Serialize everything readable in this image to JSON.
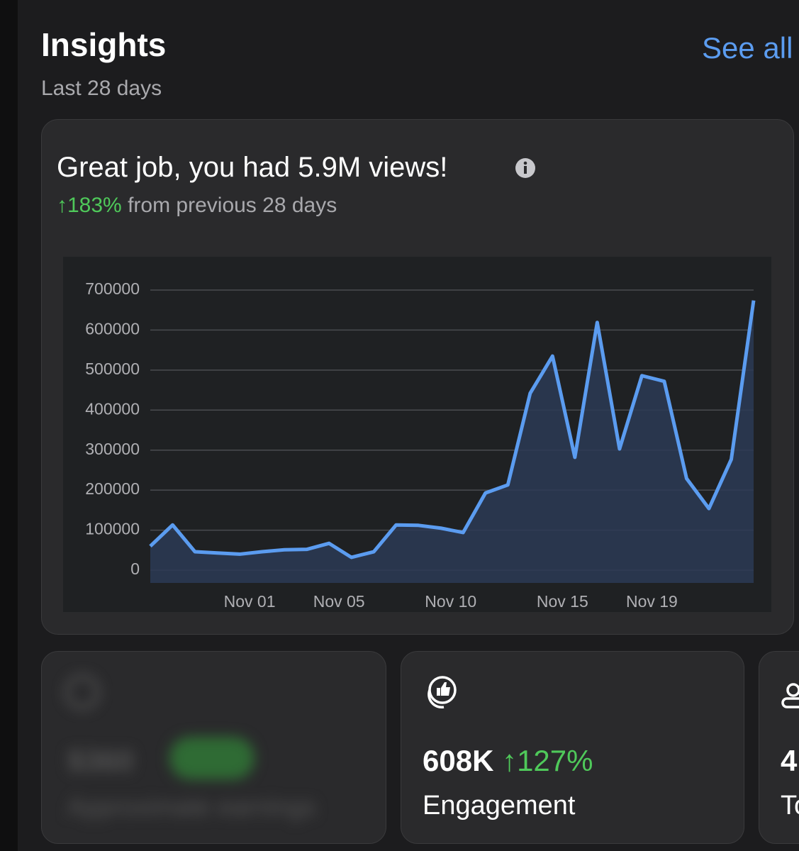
{
  "header": {
    "title": "Insights",
    "subtitle": "Last 28 days",
    "link": "See all"
  },
  "views_card": {
    "headline": "Great job, you had 5.9M views!",
    "change": "↑183%",
    "change_text": "from previous 28 days"
  },
  "chart": {
    "type": "line",
    "color": "#5b9cf0",
    "categories": [
      null,
      null,
      null,
      null,
      "Nov 01",
      null,
      null,
      null,
      "Nov 05",
      null,
      null,
      null,
      null,
      "Nov 10",
      null,
      null,
      null,
      null,
      "Nov 15",
      null,
      null,
      null,
      "Nov 19",
      null,
      null,
      null,
      null,
      null
    ],
    "values": [
      60000,
      113000,
      46000,
      43000,
      40000,
      46000,
      51000,
      52000,
      67000,
      32000,
      46000,
      113000,
      112000,
      105000,
      94000,
      193000,
      213000,
      442000,
      535000,
      282000,
      619000,
      303000,
      486000,
      472000,
      229000,
      154000,
      277000,
      674000
    ],
    "ylim": [
      0,
      700000
    ],
    "yticks": [
      0,
      100000,
      200000,
      300000,
      400000,
      500000,
      600000,
      700000
    ],
    "grid": true
  },
  "cards": [
    {
      "value": "$360",
      "label": "Approximate earnings"
    },
    {
      "value": "608K",
      "change": "↑127%",
      "label": "Engagement"
    },
    {
      "value": "4",
      "label": "To"
    }
  ]
}
